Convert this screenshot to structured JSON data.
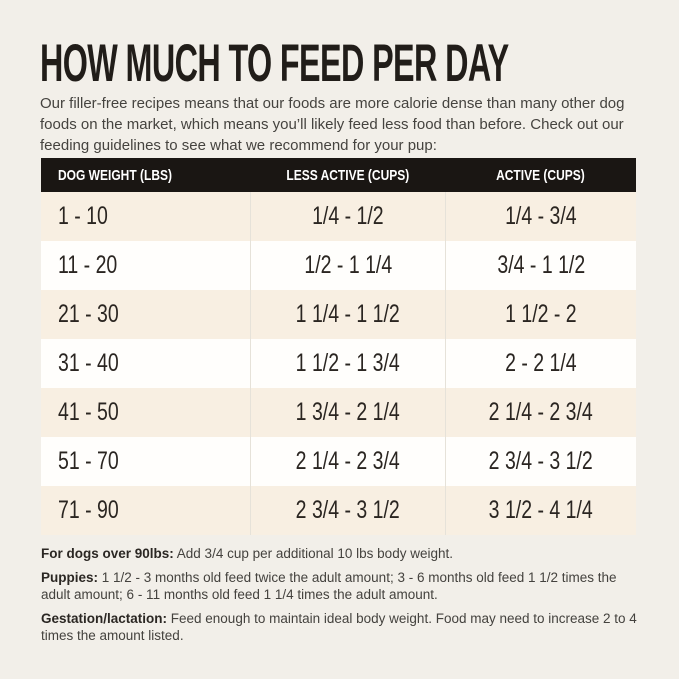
{
  "page": {
    "title": "HOW MUCH TO FEED PER DAY",
    "intro": "Our filler-free recipes means that our foods are more calorie dense than many other dog foods on the market, which means you’ll likely feed less food than before. Check out our feeding guidelines to see what we recommend for your pup:"
  },
  "table": {
    "columns": [
      "DOG WEIGHT (LBS)",
      "LESS ACTIVE (CUPS)",
      "ACTIVE (CUPS)"
    ],
    "rows": [
      {
        "weight": "1 - 10",
        "less_active": "1/4 - 1/2",
        "active": "1/4 - 3/4"
      },
      {
        "weight": "11 - 20",
        "less_active": "1/2 - 1 1/4",
        "active": "3/4 - 1 1/2"
      },
      {
        "weight": "21 - 30",
        "less_active": "1 1/4 - 1 1/2",
        "active": "1 1/2 - 2"
      },
      {
        "weight": "31 - 40",
        "less_active": "1 1/2 - 1 3/4",
        "active": "2 - 2 1/4"
      },
      {
        "weight": "41 - 50",
        "less_active": "1 3/4 - 2 1/4",
        "active": "2 1/4 - 2 3/4"
      },
      {
        "weight": "51 - 70",
        "less_active": "2 1/4 - 2 3/4",
        "active": "2 3/4 - 3 1/2"
      },
      {
        "weight": "71 - 90",
        "less_active": "2 3/4 - 3 1/2",
        "active": "3 1/2 - 4 1/4"
      }
    ]
  },
  "notes": [
    {
      "label": "For dogs over 90lbs:",
      "text": " Add 3/4 cup per additional 10 lbs body weight."
    },
    {
      "label": "Puppies:",
      "text": " 1 1/2 - 3 months old feed twice the adult amount; 3 - 6 months old feed 1 1/2 times the adult amount; 6 - 11 months old feed 1 1/4 times the adult amount."
    },
    {
      "label": "Gestation/lactation:",
      "text": " Feed enough to maintain ideal body weight. Food may need to increase 2 to 4 times the amount listed."
    }
  ],
  "colors": {
    "background": "#f2efe9",
    "header_bg": "#1a1613",
    "header_text": "#ffffff",
    "row_cream": "#f8efe2",
    "row_white": "#fffefc",
    "divider": "#e6e2d9",
    "title_text": "#211d19",
    "body_text": "#45433f"
  }
}
